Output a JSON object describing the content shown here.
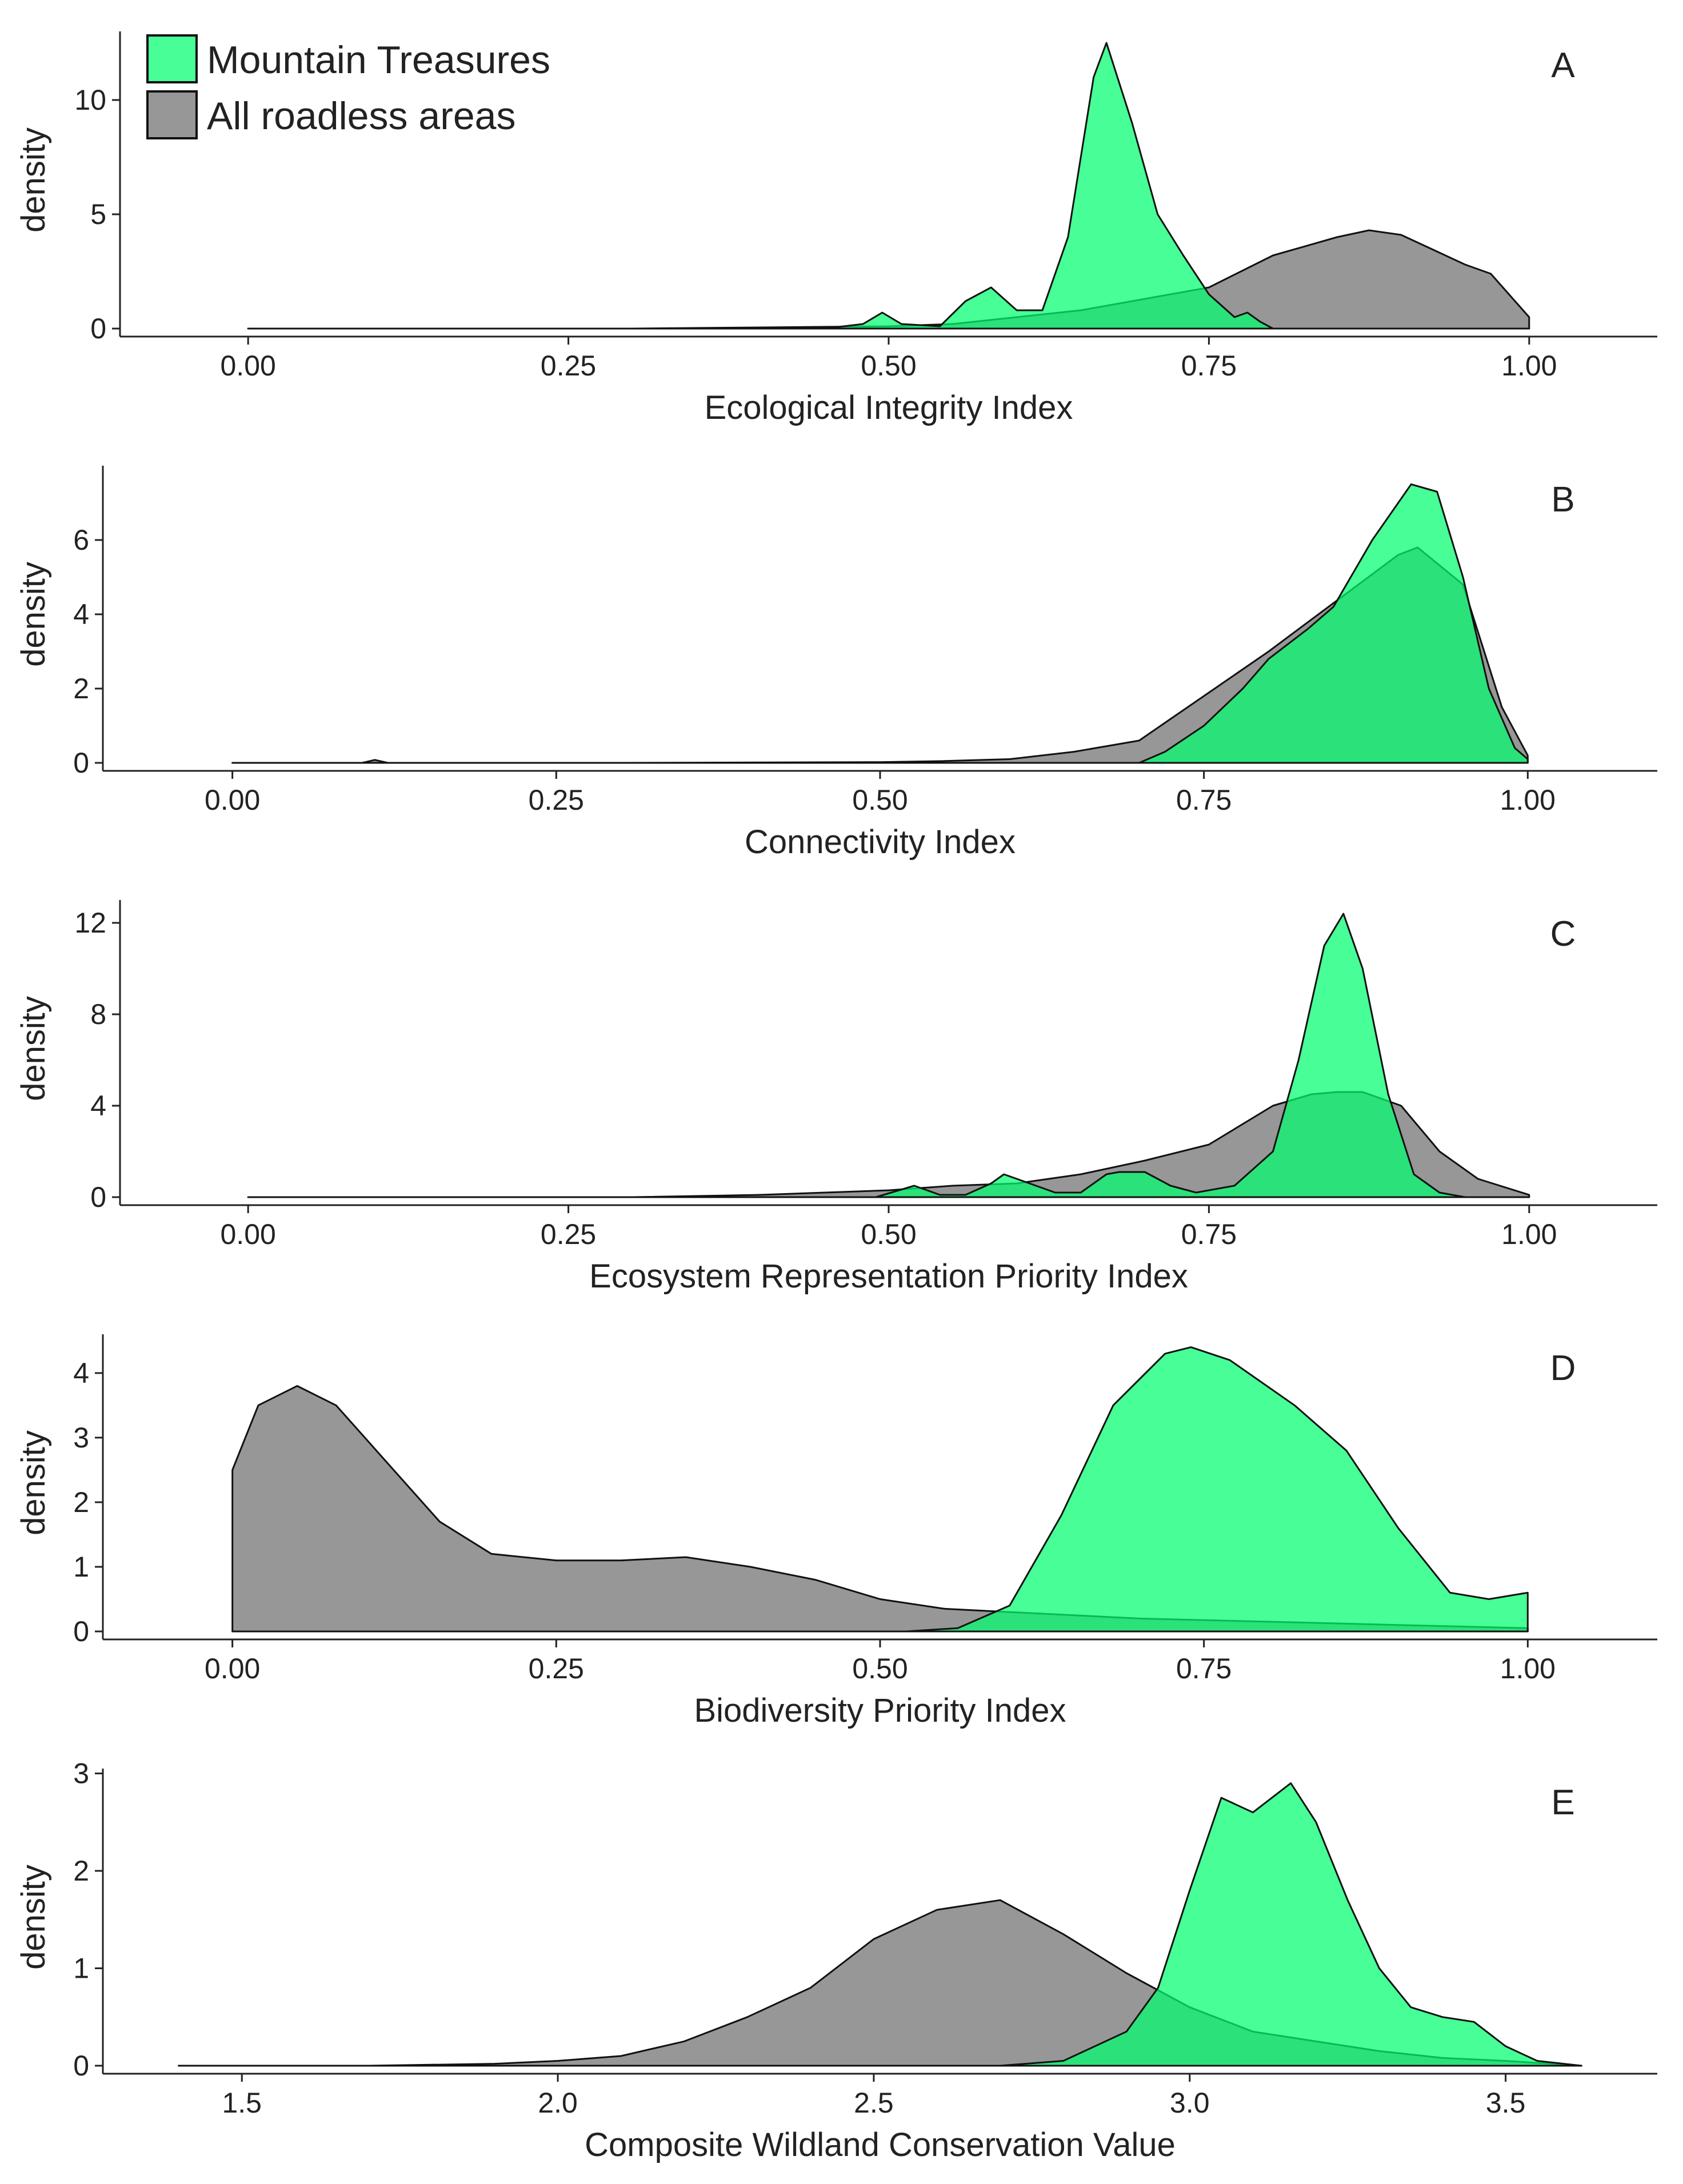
{
  "legend": {
    "entries": [
      {
        "label": "Mountain Treasures",
        "color": "#00ff6e"
      },
      {
        "label": "All roadless areas",
        "color": "#7a7a7a"
      }
    ]
  },
  "chart_data": [
    {
      "type": "area",
      "panel_label": "A",
      "xlabel": "Ecological Integrity Index",
      "ylabel": "density",
      "xlim": [
        -0.1,
        1.1
      ],
      "ylim": [
        0,
        13
      ],
      "xticks": [
        0.0,
        0.25,
        0.5,
        0.75,
        1.0
      ],
      "xtick_labels": [
        "0.00",
        "0.25",
        "0.50",
        "0.75",
        "1.00"
      ],
      "yticks": [
        0,
        5,
        10
      ],
      "ytick_labels": [
        "0",
        "5",
        "10"
      ],
      "series": [
        {
          "name": "All roadless areas",
          "x": [
            0,
            0.3,
            0.4,
            0.5,
            0.55,
            0.6,
            0.65,
            0.7,
            0.75,
            0.8,
            0.85,
            0.875,
            0.9,
            0.95,
            0.97,
            1.0
          ],
          "y": [
            0,
            0,
            0.05,
            0.1,
            0.2,
            0.5,
            0.8,
            1.3,
            1.8,
            3.2,
            4.0,
            4.3,
            4.1,
            2.8,
            2.4,
            0.5
          ]
        },
        {
          "name": "Mountain Treasures",
          "x": [
            0,
            0.45,
            0.48,
            0.495,
            0.51,
            0.54,
            0.56,
            0.58,
            0.6,
            0.62,
            0.64,
            0.66,
            0.67,
            0.69,
            0.71,
            0.73,
            0.75,
            0.77,
            0.78,
            0.79,
            0.8,
            1.0
          ],
          "y": [
            0,
            0,
            0.2,
            0.7,
            0.2,
            0.1,
            1.2,
            1.8,
            0.8,
            0.8,
            4.0,
            11.0,
            12.5,
            9.0,
            5.0,
            3.2,
            1.5,
            0.5,
            0.7,
            0.3,
            0,
            0
          ]
        }
      ]
    },
    {
      "type": "area",
      "panel_label": "B",
      "xlabel": "Connectivity Index",
      "ylabel": "density",
      "xlim": [
        -0.1,
        1.1
      ],
      "ylim": [
        0,
        8
      ],
      "xticks": [
        0.0,
        0.25,
        0.5,
        0.75,
        1.0
      ],
      "xtick_labels": [
        "0.00",
        "0.25",
        "0.50",
        "0.75",
        "1.00"
      ],
      "yticks": [
        0,
        2,
        4,
        6
      ],
      "ytick_labels": [
        "0",
        "2",
        "4",
        "6"
      ],
      "series": [
        {
          "name": "All roadless areas",
          "x": [
            0,
            0.1,
            0.11,
            0.12,
            0.3,
            0.5,
            0.55,
            0.6,
            0.65,
            0.7,
            0.75,
            0.8,
            0.85,
            0.9,
            0.915,
            0.95,
            0.98,
            1.0
          ],
          "y": [
            0,
            0,
            0.08,
            0,
            0,
            0.02,
            0.05,
            0.1,
            0.3,
            0.6,
            1.8,
            3.0,
            4.3,
            5.6,
            5.8,
            4.8,
            1.5,
            0.2
          ]
        },
        {
          "name": "Mountain Treasures",
          "x": [
            0,
            0.7,
            0.72,
            0.75,
            0.78,
            0.8,
            0.83,
            0.85,
            0.88,
            0.91,
            0.93,
            0.95,
            0.97,
            0.99,
            1.0
          ],
          "y": [
            0,
            0,
            0.3,
            1.0,
            2.0,
            2.8,
            3.6,
            4.2,
            6.0,
            7.5,
            7.3,
            5.0,
            2.0,
            0.4,
            0.1
          ]
        }
      ]
    },
    {
      "type": "area",
      "panel_label": "C",
      "xlabel": "Ecosystem Representation Priority Index",
      "ylabel": "density",
      "xlim": [
        -0.1,
        1.1
      ],
      "ylim": [
        0,
        13
      ],
      "xticks": [
        0.0,
        0.25,
        0.5,
        0.75,
        1.0
      ],
      "xtick_labels": [
        "0.00",
        "0.25",
        "0.50",
        "0.75",
        "1.00"
      ],
      "yticks": [
        0,
        4,
        8,
        12
      ],
      "ytick_labels": [
        "0",
        "4",
        "8",
        "12"
      ],
      "series": [
        {
          "name": "All roadless areas",
          "x": [
            0,
            0.3,
            0.4,
            0.5,
            0.55,
            0.6,
            0.65,
            0.7,
            0.75,
            0.8,
            0.83,
            0.85,
            0.87,
            0.9,
            0.93,
            0.96,
            1.0
          ],
          "y": [
            0,
            0,
            0.1,
            0.3,
            0.5,
            0.6,
            1.0,
            1.6,
            2.3,
            4.0,
            4.5,
            4.6,
            4.6,
            4.0,
            2.0,
            0.8,
            0.1
          ]
        },
        {
          "name": "Mountain Treasures",
          "x": [
            0,
            0.49,
            0.52,
            0.54,
            0.56,
            0.58,
            0.59,
            0.61,
            0.63,
            0.65,
            0.67,
            0.68,
            0.7,
            0.72,
            0.74,
            0.77,
            0.8,
            0.82,
            0.84,
            0.855,
            0.87,
            0.89,
            0.91,
            0.93,
            0.95,
            1.0
          ],
          "y": [
            0,
            0,
            0.5,
            0.1,
            0.1,
            0.6,
            1.0,
            0.6,
            0.2,
            0.2,
            1.0,
            1.1,
            1.1,
            0.5,
            0.2,
            0.5,
            2.0,
            6.0,
            11.0,
            12.4,
            10.0,
            4.5,
            1.0,
            0.2,
            0,
            0
          ]
        }
      ]
    },
    {
      "type": "area",
      "panel_label": "D",
      "xlabel": "Biodiversity Priority Index",
      "ylabel": "density",
      "xlim": [
        -0.1,
        1.1
      ],
      "ylim": [
        0,
        4.6
      ],
      "xticks": [
        0.0,
        0.25,
        0.5,
        0.75,
        1.0
      ],
      "xtick_labels": [
        "0.00",
        "0.25",
        "0.50",
        "0.75",
        "1.00"
      ],
      "yticks": [
        0,
        1,
        2,
        3,
        4
      ],
      "ytick_labels": [
        "0",
        "1",
        "2",
        "3",
        "4"
      ],
      "series": [
        {
          "name": "All roadless areas",
          "x": [
            0,
            0.02,
            0.05,
            0.08,
            0.12,
            0.16,
            0.2,
            0.25,
            0.3,
            0.35,
            0.4,
            0.45,
            0.5,
            0.55,
            0.6,
            0.7,
            0.8,
            0.9,
            1.0
          ],
          "y": [
            2.5,
            3.5,
            3.8,
            3.5,
            2.6,
            1.7,
            1.2,
            1.1,
            1.1,
            1.15,
            1.0,
            0.8,
            0.5,
            0.35,
            0.3,
            0.2,
            0.15,
            0.1,
            0.05
          ]
        },
        {
          "name": "Mountain Treasures",
          "x": [
            0,
            0.52,
            0.56,
            0.6,
            0.64,
            0.68,
            0.72,
            0.74,
            0.77,
            0.82,
            0.86,
            0.9,
            0.94,
            0.97,
            1.0,
            1.0
          ],
          "y": [
            0,
            0,
            0.05,
            0.4,
            1.8,
            3.5,
            4.3,
            4.4,
            4.2,
            3.5,
            2.8,
            1.6,
            0.6,
            0.5,
            0.6,
            0
          ]
        }
      ]
    },
    {
      "type": "area",
      "panel_label": "E",
      "xlabel": "Composite Wildland Conservation Value",
      "ylabel": "density",
      "xlim": [
        1.28,
        3.74
      ],
      "ylim": [
        0,
        3.05
      ],
      "xticks": [
        1.5,
        2.0,
        2.5,
        3.0,
        3.5
      ],
      "xtick_labels": [
        "1.5",
        "2.0",
        "2.5",
        "3.0",
        "3.5"
      ],
      "yticks": [
        0,
        1,
        2,
        3
      ],
      "ytick_labels": [
        "0",
        "1",
        "2",
        "3"
      ],
      "series": [
        {
          "name": "All roadless areas",
          "x": [
            1.4,
            1.7,
            1.9,
            2.0,
            2.1,
            2.2,
            2.3,
            2.4,
            2.5,
            2.6,
            2.7,
            2.8,
            2.9,
            3.0,
            3.1,
            3.2,
            3.3,
            3.4,
            3.5,
            3.62
          ],
          "y": [
            0,
            0,
            0.02,
            0.05,
            0.1,
            0.25,
            0.5,
            0.8,
            1.3,
            1.6,
            1.7,
            1.35,
            0.95,
            0.6,
            0.35,
            0.25,
            0.15,
            0.08,
            0.05,
            0
          ]
        },
        {
          "name": "Mountain Treasures",
          "x": [
            1.4,
            2.7,
            2.8,
            2.9,
            2.95,
            3.0,
            3.05,
            3.1,
            3.16,
            3.2,
            3.25,
            3.3,
            3.35,
            3.4,
            3.45,
            3.5,
            3.55,
            3.62
          ],
          "y": [
            0,
            0,
            0.05,
            0.35,
            0.8,
            1.8,
            2.75,
            2.6,
            2.9,
            2.5,
            1.7,
            1.0,
            0.6,
            0.5,
            0.45,
            0.2,
            0.05,
            0
          ]
        }
      ]
    }
  ]
}
